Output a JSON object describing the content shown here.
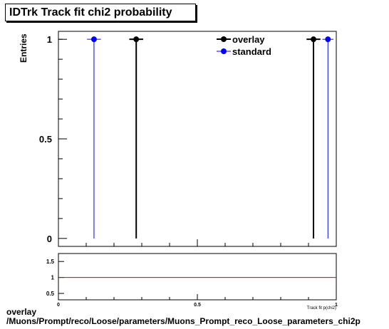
{
  "title": "IDTrk Track fit chi2 probability",
  "footer": {
    "line1": "overlay",
    "line2": "/Muons/Prompt/reco/Loose/parameters/Muons_Prompt_reco_Loose_parameters_chi2p"
  },
  "colors": {
    "overlay": "#000000",
    "standard": "#0000ff",
    "ratio_line": "#cc0000"
  },
  "chart_data": [
    {
      "type": "scatter",
      "title": "IDTrk Track fit chi2 probability",
      "ylabel": "Entries",
      "xlim": [
        0,
        1
      ],
      "ylim": [
        -0.04,
        1.04
      ],
      "y_ticks": [
        {
          "v": 0,
          "label": "0"
        },
        {
          "v": 0.5,
          "label": "0.5"
        },
        {
          "v": 1,
          "label": "1"
        }
      ],
      "grid": false,
      "legend_position": "top-right",
      "series": [
        {
          "name": "overlay",
          "color": "#000000",
          "points": [
            {
              "x": 0.28,
              "y": 1,
              "xerr": 0.025
            },
            {
              "x": 0.918,
              "y": 1,
              "xerr": 0.025
            }
          ]
        },
        {
          "name": "standard",
          "color": "#0000ff",
          "points": [
            {
              "x": 0.128,
              "y": 1,
              "xerr": 0.025
            },
            {
              "x": 0.97,
              "y": 1,
              "xerr": 0.02
            }
          ]
        }
      ]
    },
    {
      "type": "line",
      "xlabel": "Track fit p(chi2)",
      "xlim": [
        0,
        1
      ],
      "ylim": [
        0.3,
        1.75
      ],
      "x_ticks": [
        {
          "v": 0,
          "label": "0"
        },
        {
          "v": 0.5,
          "label": "0.5"
        },
        {
          "v": 1,
          "label": "1"
        }
      ],
      "y_ticks": [
        {
          "v": 0.5,
          "label": "0.5"
        },
        {
          "v": 1,
          "label": "1"
        },
        {
          "v": 1.5,
          "label": "1.5"
        }
      ],
      "reference_line": 1
    }
  ]
}
